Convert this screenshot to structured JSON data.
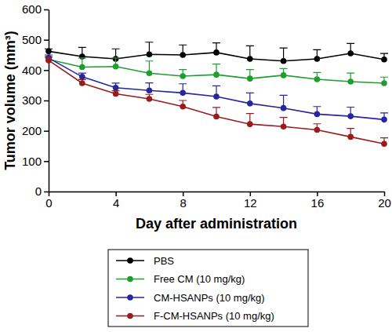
{
  "chart_data": {
    "type": "line",
    "x_label": "Day after administration",
    "y_label": "Tumor volume (mm³)",
    "x": [
      0,
      2,
      4,
      6,
      8,
      10,
      12,
      14,
      16,
      18,
      20
    ],
    "xlim": [
      0,
      20
    ],
    "xticks": [
      0,
      4,
      8,
      12,
      16,
      20
    ],
    "ylim": [
      0,
      600
    ],
    "yticks": [
      0,
      100,
      200,
      300,
      400,
      500,
      600
    ],
    "grid": false,
    "legend": "bottom",
    "marker": "circle",
    "line_style": "solid",
    "series": [
      {
        "name": "PBS",
        "color": "#000000",
        "values": [
          462,
          445,
          437,
          452,
          450,
          458,
          437,
          430,
          437,
          455,
          435
        ],
        "errors": [
          8,
          30,
          33,
          40,
          33,
          32,
          43,
          43,
          30,
          33,
          20
        ]
      },
      {
        "name": "Free CM (10 mg/kg)",
        "color": "#1e9e2e",
        "values": [
          435,
          410,
          412,
          390,
          380,
          385,
          372,
          383,
          370,
          362,
          357
        ],
        "errors": [
          10,
          30,
          28,
          40,
          22,
          35,
          30,
          22,
          22,
          28,
          20
        ]
      },
      {
        "name": "CM-HSANPs (10 mg/kg)",
        "color": "#26269e",
        "values": [
          440,
          378,
          342,
          333,
          325,
          313,
          290,
          275,
          255,
          248,
          237
        ],
        "errors": [
          10,
          12,
          15,
          25,
          30,
          35,
          35,
          42,
          25,
          30,
          22
        ]
      },
      {
        "name": "F-CM-HSANPs (10 mg/kg)",
        "color": "#991b1e",
        "values": [
          432,
          357,
          322,
          305,
          280,
          247,
          222,
          214,
          203,
          180,
          157
        ],
        "errors": [
          10,
          12,
          10,
          15,
          20,
          30,
          35,
          30,
          20,
          28,
          20
        ]
      }
    ]
  }
}
